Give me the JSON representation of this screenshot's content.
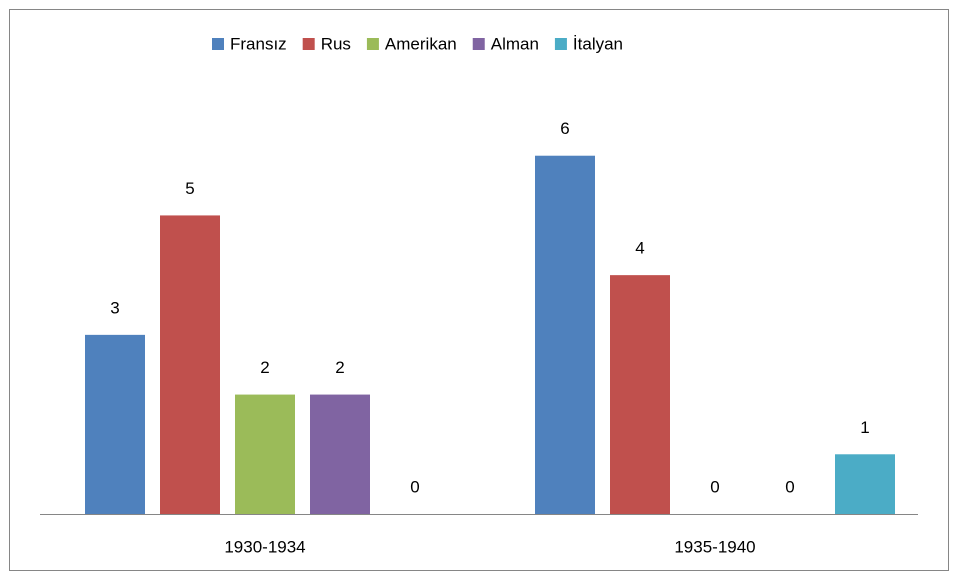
{
  "chart_data": {
    "type": "bar",
    "categories": [
      "1930-1934",
      "1935-1940"
    ],
    "series": [
      {
        "name": "Fransız",
        "color": "#4f81bd",
        "values": [
          3,
          6
        ]
      },
      {
        "name": "Rus",
        "color": "#c0504d",
        "values": [
          5,
          4
        ]
      },
      {
        "name": "Amerikan",
        "color": "#9bbb59",
        "values": [
          2,
          0
        ]
      },
      {
        "name": "Alman",
        "color": "#8064a2",
        "values": [
          2,
          0
        ]
      },
      {
        "name": "İtalyan",
        "color": "#4bacc6",
        "values": [
          0,
          1
        ]
      }
    ],
    "ylim": [
      0,
      7
    ],
    "legend": "top"
  }
}
